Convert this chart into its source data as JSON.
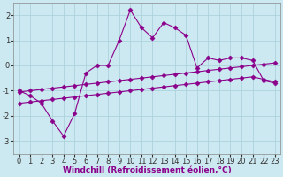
{
  "x": [
    0,
    1,
    2,
    3,
    4,
    5,
    6,
    7,
    8,
    9,
    10,
    11,
    12,
    13,
    14,
    15,
    16,
    17,
    18,
    19,
    20,
    21,
    22,
    23
  ],
  "line1_y": [
    -1.0,
    -1.2,
    -1.5,
    -2.2,
    -2.8,
    -1.9,
    -0.3,
    0.0,
    0.0,
    1.0,
    2.2,
    1.5,
    1.1,
    1.7,
    1.5,
    1.2,
    -0.1,
    0.3,
    0.2,
    0.3,
    0.3,
    0.2,
    -0.6,
    -0.7
  ],
  "line2_y": [
    -1.05,
    -1.0,
    -0.95,
    -0.9,
    -0.85,
    -0.8,
    -0.75,
    -0.7,
    -0.65,
    -0.6,
    -0.55,
    -0.5,
    -0.45,
    -0.4,
    -0.35,
    -0.3,
    -0.25,
    -0.2,
    -0.15,
    -0.1,
    -0.05,
    0.0,
    0.05,
    0.1
  ],
  "line3_y": [
    -1.5,
    -1.45,
    -1.4,
    -1.35,
    -1.3,
    -1.25,
    -1.2,
    -1.15,
    -1.1,
    -1.05,
    -1.0,
    -0.95,
    -0.9,
    -0.85,
    -0.8,
    -0.75,
    -0.7,
    -0.65,
    -0.6,
    -0.55,
    -0.5,
    -0.45,
    -0.55,
    -0.65
  ],
  "line_color": "#8B008B",
  "marker": "D",
  "markersize": 2.5,
  "linewidth": 0.8,
  "bg_color": "#cce8f0",
  "grid_color": "#a8cfd8",
  "xlabel": "Windchill (Refroidissement éolien,°C)",
  "xlim": [
    -0.5,
    23.5
  ],
  "ylim": [
    -3.5,
    2.5
  ],
  "yticks": [
    -3,
    -2,
    -1,
    0,
    1,
    2
  ],
  "xticks": [
    0,
    1,
    2,
    3,
    4,
    5,
    6,
    7,
    8,
    9,
    10,
    11,
    12,
    13,
    14,
    15,
    16,
    17,
    18,
    19,
    20,
    21,
    22,
    23
  ],
  "xlabel_fontsize": 6.5,
  "tick_fontsize": 6.0
}
